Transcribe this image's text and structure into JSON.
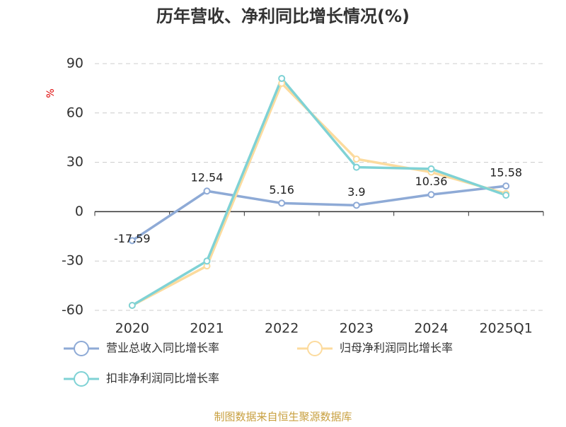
{
  "chart_data": {
    "type": "line",
    "title": "历年营收、净利同比增长情况(%)",
    "y_label": "%",
    "categories": [
      "2020",
      "2021",
      "2022",
      "2023",
      "2024",
      "2025Q1"
    ],
    "series": [
      {
        "name": "营业总收入同比增长率",
        "color": "#8eaad6",
        "values": [
          -17.59,
          12.54,
          5.16,
          3.9,
          10.36,
          15.58
        ],
        "show_labels": true
      },
      {
        "name": "归母净利润同比增长率",
        "color": "#fcdb9e",
        "values": [
          -57,
          -33,
          78,
          32,
          24,
          11
        ],
        "show_labels": false
      },
      {
        "name": "扣非净利润同比增长率",
        "color": "#7fd2d5",
        "values": [
          -57,
          -30,
          81,
          27,
          26,
          10
        ],
        "show_labels": false
      }
    ],
    "ylim": [
      -60,
      90
    ],
    "yticks": [
      -60,
      -30,
      0,
      30,
      60,
      90
    ],
    "grid": true,
    "source": "制图数据来自恒生聚源数据库"
  }
}
